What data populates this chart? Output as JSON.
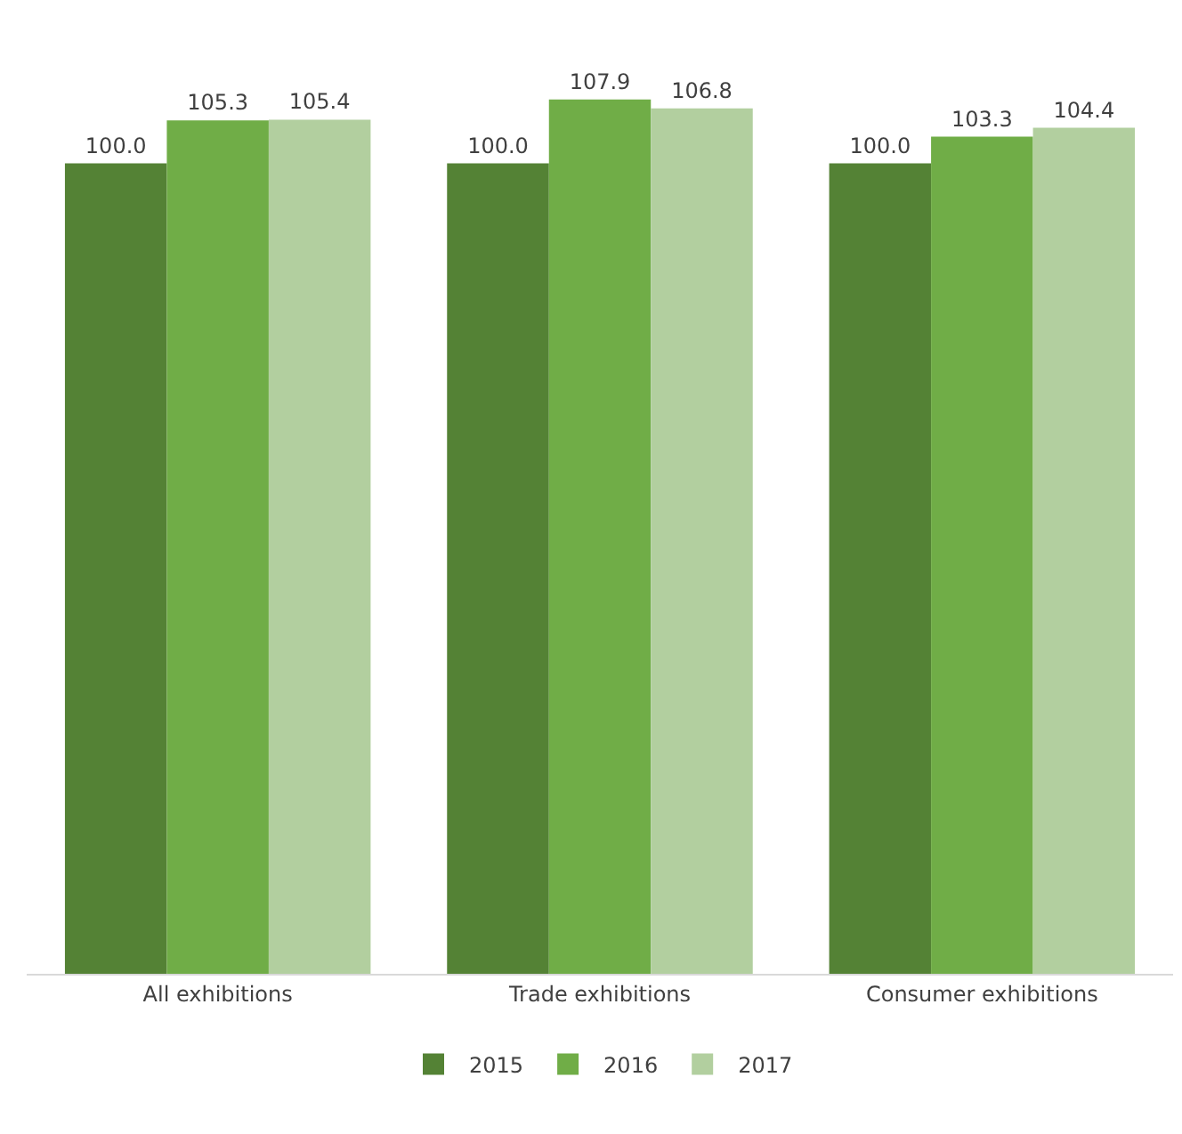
{
  "chart_data": {
    "type": "bar",
    "categories": [
      "All exhibitions",
      "Trade exhibitions",
      "Consumer exhibitions"
    ],
    "series": [
      {
        "name": "2015",
        "color": "#548235",
        "values": [
          100.0,
          100.0,
          100.0
        ],
        "value_labels": [
          "100.0",
          "100.0",
          "100.0"
        ]
      },
      {
        "name": "2016",
        "color": "#70ad47",
        "values": [
          105.3,
          107.9,
          103.3
        ],
        "value_labels": [
          "105.3",
          "107.9",
          "103.3"
        ]
      },
      {
        "name": "2017",
        "color": "#b2cf9f",
        "values": [
          105.4,
          106.8,
          104.4
        ],
        "value_labels": [
          "105.4",
          "106.8",
          "104.4"
        ]
      }
    ],
    "tick_labels": "x",
    "legend": "bottom"
  }
}
